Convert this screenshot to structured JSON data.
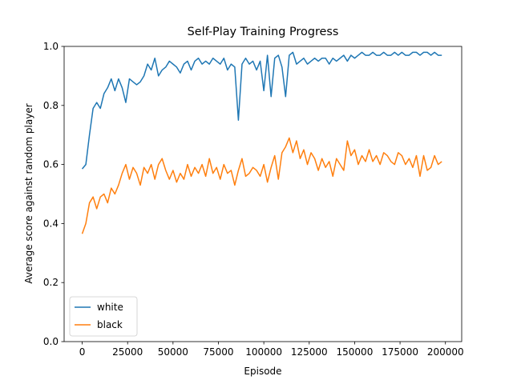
{
  "chart_data": {
    "type": "line",
    "title": "Self-Play Training Progress",
    "x_label": "Episode",
    "y_label": "Average score against random player",
    "x": [
      0,
      2000,
      4000,
      6000,
      8000,
      10000,
      12000,
      14000,
      16000,
      18000,
      20000,
      22000,
      24000,
      26000,
      28000,
      30000,
      32000,
      34000,
      36000,
      38000,
      40000,
      42000,
      44000,
      46000,
      48000,
      50000,
      52000,
      54000,
      56000,
      58000,
      60000,
      62000,
      64000,
      66000,
      68000,
      70000,
      72000,
      74000,
      76000,
      78000,
      80000,
      82000,
      84000,
      86000,
      88000,
      90000,
      92000,
      94000,
      96000,
      98000,
      100000,
      102000,
      104000,
      106000,
      108000,
      110000,
      112000,
      114000,
      116000,
      118000,
      120000,
      122000,
      124000,
      126000,
      128000,
      130000,
      132000,
      134000,
      136000,
      138000,
      140000,
      142000,
      144000,
      146000,
      148000,
      150000,
      152000,
      154000,
      156000,
      158000,
      160000,
      162000,
      164000,
      166000,
      168000,
      170000,
      172000,
      174000,
      176000,
      178000,
      180000,
      182000,
      184000,
      186000,
      188000,
      190000,
      192000,
      194000,
      196000,
      198000
    ],
    "series": [
      {
        "name": "white",
        "color": "#1f77b4",
        "values": [
          0.585,
          0.6,
          0.7,
          0.79,
          0.81,
          0.79,
          0.84,
          0.86,
          0.89,
          0.85,
          0.89,
          0.86,
          0.81,
          0.89,
          0.88,
          0.87,
          0.88,
          0.9,
          0.94,
          0.92,
          0.96,
          0.9,
          0.92,
          0.93,
          0.95,
          0.94,
          0.93,
          0.91,
          0.94,
          0.95,
          0.92,
          0.95,
          0.96,
          0.94,
          0.95,
          0.94,
          0.96,
          0.95,
          0.94,
          0.96,
          0.92,
          0.94,
          0.93,
          0.75,
          0.94,
          0.96,
          0.94,
          0.95,
          0.92,
          0.95,
          0.85,
          0.97,
          0.83,
          0.96,
          0.97,
          0.93,
          0.83,
          0.97,
          0.98,
          0.94,
          0.95,
          0.96,
          0.94,
          0.95,
          0.96,
          0.95,
          0.96,
          0.96,
          0.94,
          0.96,
          0.95,
          0.96,
          0.97,
          0.95,
          0.97,
          0.96,
          0.97,
          0.98,
          0.97,
          0.97,
          0.98,
          0.97,
          0.97,
          0.98,
          0.97,
          0.97,
          0.98,
          0.97,
          0.98,
          0.97,
          0.97,
          0.98,
          0.98,
          0.97,
          0.98,
          0.98,
          0.97,
          0.98,
          0.97,
          0.97
        ]
      },
      {
        "name": "black",
        "color": "#ff7f0e",
        "values": [
          0.365,
          0.4,
          0.47,
          0.49,
          0.45,
          0.49,
          0.5,
          0.47,
          0.52,
          0.5,
          0.53,
          0.57,
          0.6,
          0.55,
          0.59,
          0.57,
          0.53,
          0.59,
          0.57,
          0.6,
          0.55,
          0.6,
          0.62,
          0.58,
          0.55,
          0.58,
          0.54,
          0.57,
          0.55,
          0.6,
          0.56,
          0.59,
          0.57,
          0.6,
          0.56,
          0.62,
          0.57,
          0.59,
          0.55,
          0.6,
          0.57,
          0.58,
          0.53,
          0.58,
          0.62,
          0.56,
          0.57,
          0.59,
          0.58,
          0.56,
          0.6,
          0.54,
          0.59,
          0.63,
          0.55,
          0.64,
          0.66,
          0.69,
          0.64,
          0.68,
          0.62,
          0.65,
          0.6,
          0.64,
          0.62,
          0.58,
          0.62,
          0.59,
          0.61,
          0.56,
          0.62,
          0.6,
          0.58,
          0.68,
          0.63,
          0.65,
          0.6,
          0.63,
          0.61,
          0.65,
          0.61,
          0.63,
          0.6,
          0.64,
          0.63,
          0.61,
          0.6,
          0.64,
          0.63,
          0.6,
          0.62,
          0.59,
          0.63,
          0.56,
          0.63,
          0.58,
          0.59,
          0.63,
          0.6,
          0.61
        ]
      }
    ],
    "xlim": [
      -9950,
      208950
    ],
    "ylim": [
      0,
      1
    ],
    "xticks": [
      0,
      25000,
      50000,
      75000,
      100000,
      125000,
      150000,
      175000,
      200000
    ],
    "yticks": [
      {
        "value": 0,
        "label": "0.0"
      },
      0.2,
      0.4,
      0.6,
      0.8,
      {
        "value": 1,
        "label": "1.0"
      }
    ],
    "legend": "lower left"
  }
}
